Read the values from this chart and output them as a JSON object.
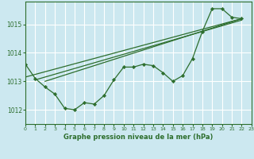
{
  "title": "Graphe pression niveau de la mer (hPa)",
  "xlim": [
    0,
    23
  ],
  "ylim": [
    1011.5,
    1015.8
  ],
  "yticks": [
    1012,
    1013,
    1014,
    1015
  ],
  "xticks": [
    0,
    1,
    2,
    3,
    4,
    5,
    6,
    7,
    8,
    9,
    10,
    11,
    12,
    13,
    14,
    15,
    16,
    17,
    18,
    19,
    20,
    21,
    22,
    23
  ],
  "bg_color": "#cce8f0",
  "grid_color": "#ffffff",
  "line_color": "#2d6e2d",
  "marker_color": "#2d6e2d",
  "series1_x": [
    0,
    1,
    2,
    3,
    4,
    5,
    6,
    7,
    8,
    9,
    10,
    11,
    12,
    13,
    14,
    15,
    16,
    17,
    18,
    19,
    20,
    21,
    22
  ],
  "series1_y": [
    1013.6,
    1013.1,
    1012.8,
    1012.55,
    1012.05,
    1012.0,
    1012.25,
    1012.2,
    1012.5,
    1013.05,
    1013.5,
    1013.5,
    1013.6,
    1013.55,
    1013.3,
    1013.0,
    1013.2,
    1013.8,
    1014.75,
    1015.55,
    1015.55,
    1015.25,
    1015.2
  ],
  "line1_x": [
    0,
    22
  ],
  "line1_y": [
    1013.15,
    1015.2
  ],
  "line2_x": [
    1,
    22
  ],
  "line2_y": [
    1013.05,
    1015.15
  ],
  "line3_x": [
    2,
    22
  ],
  "line3_y": [
    1013.0,
    1015.2
  ]
}
